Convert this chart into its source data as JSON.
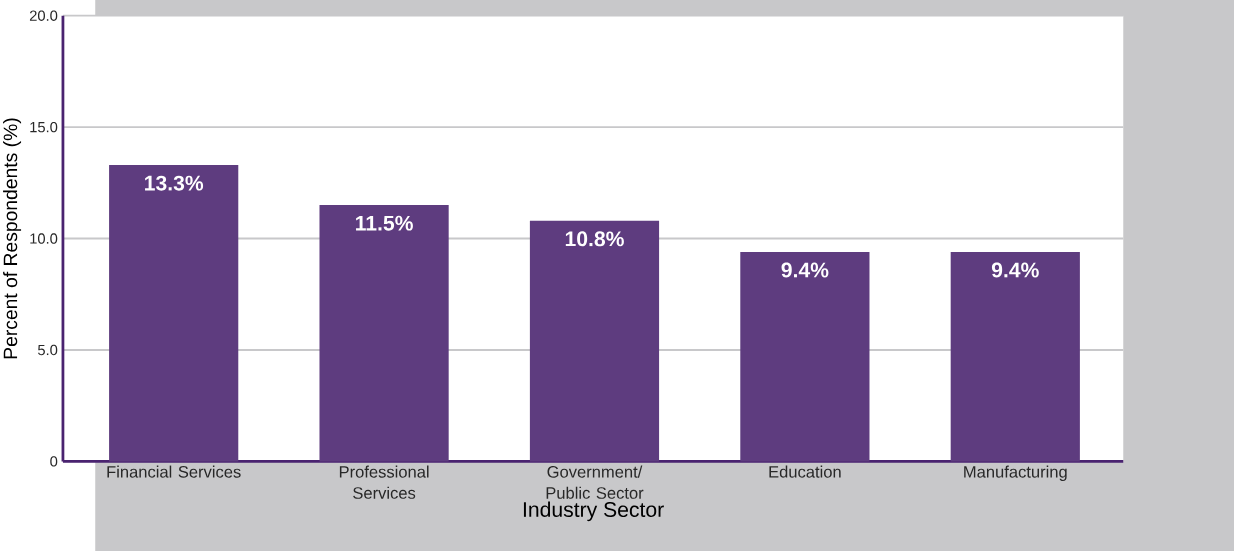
{
  "chart_data": {
    "type": "bar",
    "xlabel": "Industry Sector",
    "ylabel": "Percent of Respondents (%)",
    "categories": [
      "Financial Services",
      "Professional Services",
      "Government/ Public Sector",
      "Education",
      "Manufacturing"
    ],
    "values": [
      13.3,
      11.5,
      10.8,
      9.4,
      9.4
    ],
    "value_labels": [
      "13.3%",
      "11.5%",
      "10.8%",
      "9.4%",
      "9.4%"
    ],
    "color": "#5e3c7f",
    "ylim": [
      0,
      20
    ],
    "yticks": [
      0,
      {
        "value": 5,
        "label": "5.0"
      },
      {
        "value": 10,
        "label": "10.0"
      },
      {
        "value": 15,
        "label": "15.0"
      },
      {
        "value": 20,
        "label": "20.0"
      }
    ],
    "grid": "y"
  }
}
